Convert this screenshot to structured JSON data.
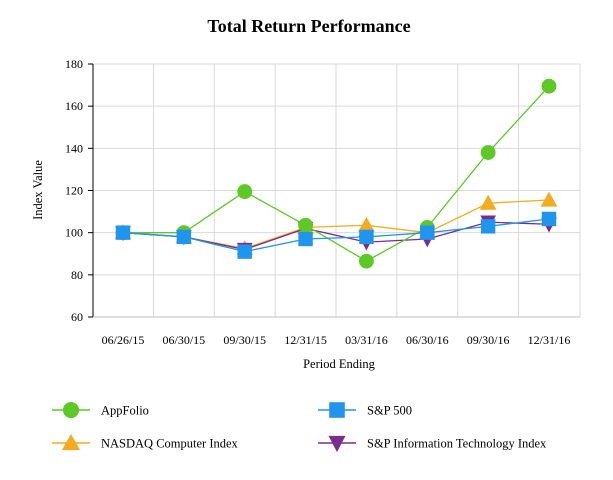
{
  "chart_data": {
    "type": "line",
    "title": "Total Return Performance",
    "xlabel": "Period Ending",
    "ylabel": "Index Value",
    "ylim": [
      60,
      180
    ],
    "yticks": [
      60,
      80,
      100,
      120,
      140,
      160,
      180
    ],
    "grid": true,
    "categories": [
      "06/26/15",
      "06/30/15",
      "09/30/15",
      "12/31/15",
      "03/31/16",
      "06/30/16",
      "09/30/16",
      "12/31/16"
    ],
    "legend_position": "bottom",
    "series": [
      {
        "name": "AppFolio",
        "color": "#5ec926",
        "marker": "circle",
        "values": [
          100,
          100,
          119.5,
          103.5,
          86.5,
          102.5,
          138,
          169.5
        ]
      },
      {
        "name": "S&P 500",
        "color": "#1f95ee",
        "marker": "square",
        "values": [
          100,
          98,
          91,
          97,
          98,
          100,
          103,
          106.5
        ]
      },
      {
        "name": "NASDAQ Computer Index",
        "color": "#f3ab22",
        "marker": "triangle-up",
        "values": [
          100,
          98,
          92.5,
          102.5,
          103.5,
          100,
          114,
          115.5
        ]
      },
      {
        "name": "S&P Information Technology  Index",
        "color": "#7b2d8e",
        "marker": "triangle-down",
        "values": [
          100,
          98,
          92,
          102,
          95.5,
          97,
          105,
          104
        ]
      }
    ]
  }
}
